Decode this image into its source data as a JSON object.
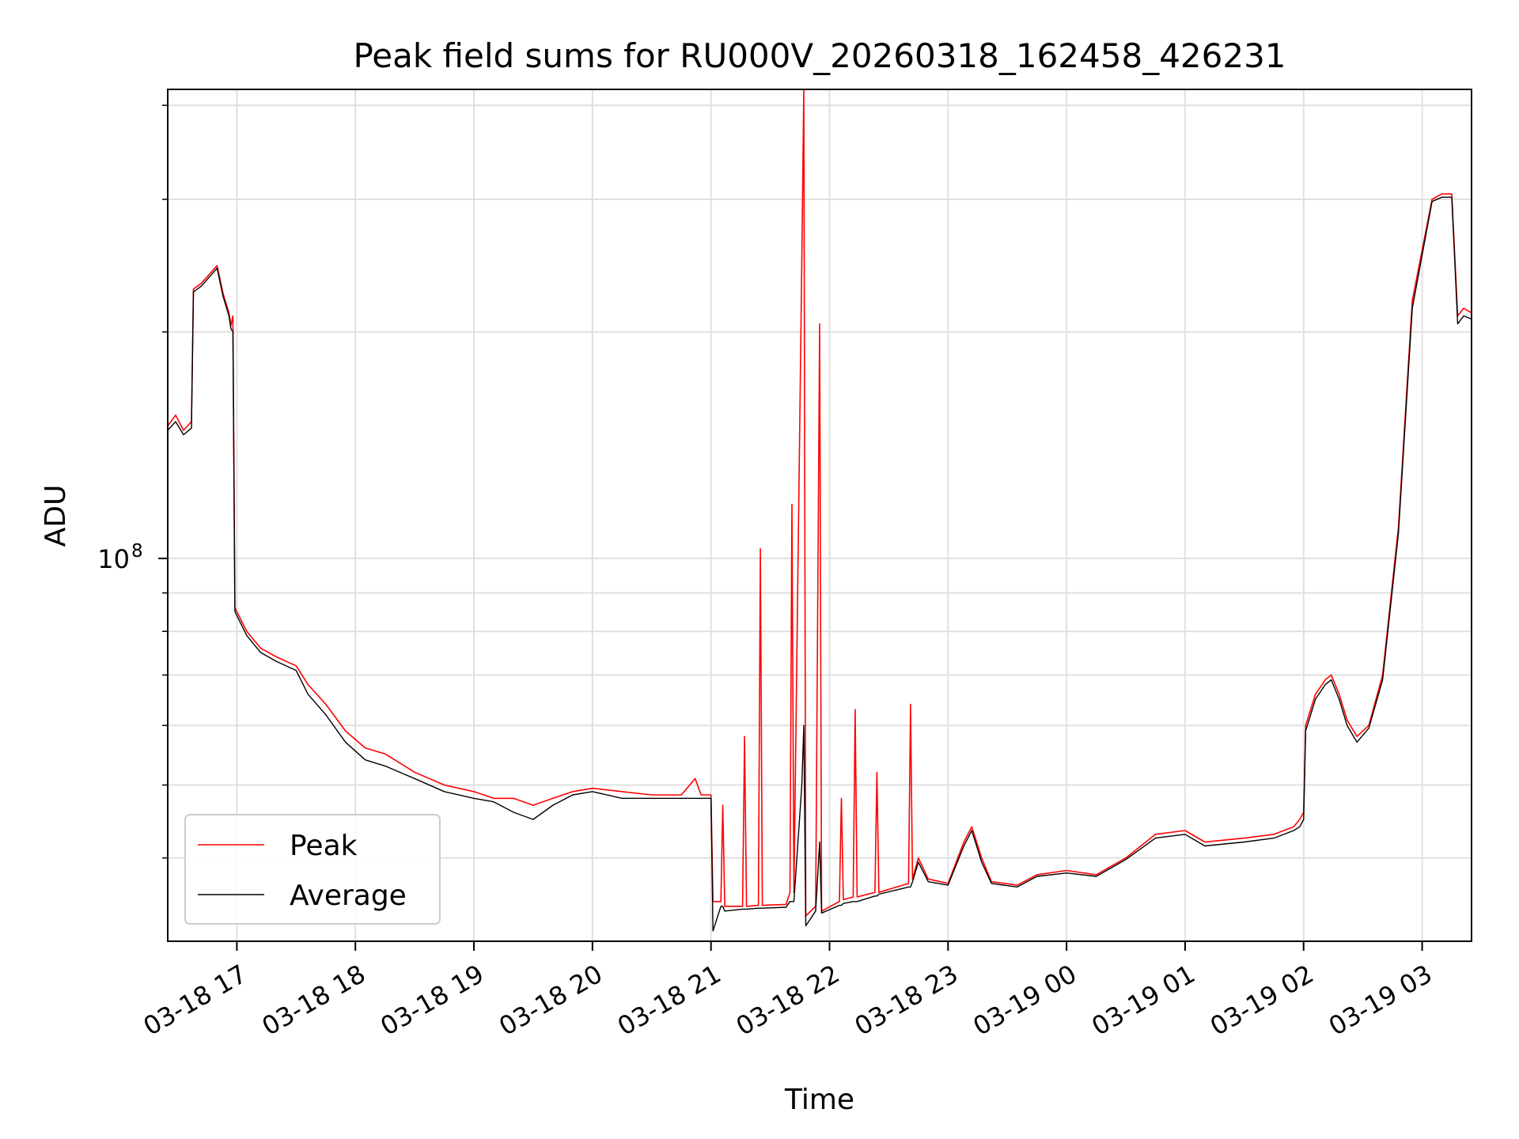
{
  "chart_data": {
    "type": "line",
    "title": "Peak field sums for RU000V_20260318_162458_426231",
    "xlabel": "Time",
    "ylabel": "ADU",
    "y_scale": "log",
    "ylim": [
      31000000,
      420000000
    ],
    "xlim": [
      "2026-03-18 16:25",
      "2026-03-19 03:25"
    ],
    "x_ticks": [
      {
        "time": "2026-03-18 17:00",
        "label": "03-18 17"
      },
      {
        "time": "2026-03-18 18:00",
        "label": "03-18 18"
      },
      {
        "time": "2026-03-18 19:00",
        "label": "03-18 19"
      },
      {
        "time": "2026-03-18 20:00",
        "label": "03-18 20"
      },
      {
        "time": "2026-03-18 21:00",
        "label": "03-18 21"
      },
      {
        "time": "2026-03-18 22:00",
        "label": "03-18 22"
      },
      {
        "time": "2026-03-18 23:00",
        "label": "03-18 23"
      },
      {
        "time": "2026-03-19 00:00",
        "label": "03-19 00"
      },
      {
        "time": "2026-03-19 01:00",
        "label": "03-19 01"
      },
      {
        "time": "2026-03-19 02:00",
        "label": "03-19 02"
      },
      {
        "time": "2026-03-19 03:00",
        "label": "03-19 03"
      }
    ],
    "y_major_ticks": [
      {
        "value": 100000000,
        "label": "10",
        "exponent": "8"
      }
    ],
    "y_minor_ticks": [
      40000000,
      50000000,
      60000000,
      70000000,
      80000000,
      90000000,
      200000000,
      300000000,
      400000000
    ],
    "grid": true,
    "legend": {
      "placement": "lower-left"
    },
    "series": [
      {
        "name": "Peak",
        "color": "#ff0000",
        "points": [
          [
            "2026-03-18 16:25",
            150000000
          ],
          [
            "2026-03-18 16:29",
            155000000
          ],
          [
            "2026-03-18 16:33",
            148000000
          ],
          [
            "2026-03-18 16:37",
            152000000
          ],
          [
            "2026-03-18 16:38",
            228000000
          ],
          [
            "2026-03-18 16:42",
            232000000
          ],
          [
            "2026-03-18 16:47",
            240000000
          ],
          [
            "2026-03-18 16:50",
            245000000
          ],
          [
            "2026-03-18 16:53",
            225000000
          ],
          [
            "2026-03-18 16:56",
            212000000
          ],
          [
            "2026-03-18 16:57",
            204000000
          ],
          [
            "2026-03-18 16:58",
            210000000
          ],
          [
            "2026-03-18 16:59",
            86000000
          ],
          [
            "2026-03-18 17:05",
            80000000
          ],
          [
            "2026-03-18 17:12",
            76000000
          ],
          [
            "2026-03-18 17:20",
            74000000
          ],
          [
            "2026-03-18 17:30",
            72000000
          ],
          [
            "2026-03-18 17:36",
            68000000
          ],
          [
            "2026-03-18 17:45",
            64000000
          ],
          [
            "2026-03-18 17:55",
            59000000
          ],
          [
            "2026-03-18 18:05",
            56000000
          ],
          [
            "2026-03-18 18:15",
            55000000
          ],
          [
            "2026-03-18 18:30",
            52000000
          ],
          [
            "2026-03-18 18:45",
            50000000
          ],
          [
            "2026-03-18 19:00",
            49000000
          ],
          [
            "2026-03-18 19:10",
            48000000
          ],
          [
            "2026-03-18 19:20",
            48000000
          ],
          [
            "2026-03-18 19:30",
            47000000
          ],
          [
            "2026-03-18 19:40",
            48000000
          ],
          [
            "2026-03-18 19:50",
            49000000
          ],
          [
            "2026-03-18 20:00",
            49500000
          ],
          [
            "2026-03-18 20:15",
            49000000
          ],
          [
            "2026-03-18 20:30",
            48500000
          ],
          [
            "2026-03-18 20:45",
            48500000
          ],
          [
            "2026-03-18 20:52",
            51000000
          ],
          [
            "2026-03-18 20:55",
            48500000
          ],
          [
            "2026-03-18 21:00",
            48500000
          ],
          [
            "2026-03-18 21:01",
            35000000
          ],
          [
            "2026-03-18 21:05",
            35000000
          ],
          [
            "2026-03-18 21:06",
            47000000
          ],
          [
            "2026-03-18 21:07",
            34500000
          ],
          [
            "2026-03-18 21:16",
            34500000
          ],
          [
            "2026-03-18 21:17",
            58000000
          ],
          [
            "2026-03-18 21:18",
            34500000
          ],
          [
            "2026-03-18 21:24",
            34600000
          ],
          [
            "2026-03-18 21:25",
            103000000
          ],
          [
            "2026-03-18 21:26",
            34600000
          ],
          [
            "2026-03-18 21:38",
            34700000
          ],
          [
            "2026-03-18 21:40",
            36000000
          ],
          [
            "2026-03-18 21:41",
            118000000
          ],
          [
            "2026-03-18 21:42",
            36000000
          ],
          [
            "2026-03-18 21:46",
            250000000
          ],
          [
            "2026-03-18 21:47",
            420000000
          ],
          [
            "2026-03-18 21:48",
            33500000
          ],
          [
            "2026-03-18 21:53",
            34500000
          ],
          [
            "2026-03-18 21:55",
            205000000
          ],
          [
            "2026-03-18 21:56",
            34000000
          ],
          [
            "2026-03-18 22:05",
            35000000
          ],
          [
            "2026-03-18 22:06",
            48000000
          ],
          [
            "2026-03-18 22:07",
            35200000
          ],
          [
            "2026-03-18 22:12",
            35500000
          ],
          [
            "2026-03-18 22:13",
            63000000
          ],
          [
            "2026-03-18 22:14",
            35500000
          ],
          [
            "2026-03-18 22:23",
            36000000
          ],
          [
            "2026-03-18 22:24",
            52000000
          ],
          [
            "2026-03-18 22:25",
            36000000
          ],
          [
            "2026-03-18 22:40",
            37000000
          ],
          [
            "2026-03-18 22:41",
            64000000
          ],
          [
            "2026-03-18 22:42",
            37500000
          ],
          [
            "2026-03-18 22:45",
            40000000
          ],
          [
            "2026-03-18 22:50",
            37500000
          ],
          [
            "2026-03-18 23:00",
            37000000
          ],
          [
            "2026-03-18 23:08",
            42000000
          ],
          [
            "2026-03-18 23:12",
            44000000
          ],
          [
            "2026-03-18 23:17",
            40000000
          ],
          [
            "2026-03-18 23:22",
            37200000
          ],
          [
            "2026-03-18 23:35",
            36800000
          ],
          [
            "2026-03-18 23:45",
            38000000
          ],
          [
            "2026-03-19 00:00",
            38500000
          ],
          [
            "2026-03-19 00:15",
            38000000
          ],
          [
            "2026-03-19 00:30",
            40000000
          ],
          [
            "2026-03-19 00:45",
            43000000
          ],
          [
            "2026-03-19 01:00",
            43500000
          ],
          [
            "2026-03-19 01:10",
            42000000
          ],
          [
            "2026-03-19 01:30",
            42500000
          ],
          [
            "2026-03-19 01:45",
            43000000
          ],
          [
            "2026-03-19 01:55",
            44000000
          ],
          [
            "2026-03-19 01:58",
            45000000
          ],
          [
            "2026-03-19 02:00",
            46000000
          ],
          [
            "2026-03-19 02:01",
            60000000
          ],
          [
            "2026-03-19 02:06",
            66000000
          ],
          [
            "2026-03-19 02:11",
            69000000
          ],
          [
            "2026-03-19 02:14",
            70000000
          ],
          [
            "2026-03-19 02:18",
            66000000
          ],
          [
            "2026-03-19 02:22",
            61000000
          ],
          [
            "2026-03-19 02:27",
            58000000
          ],
          [
            "2026-03-19 02:33",
            60000000
          ],
          [
            "2026-03-19 02:40",
            70000000
          ],
          [
            "2026-03-19 02:48",
            110000000
          ],
          [
            "2026-03-19 02:55",
            220000000
          ],
          [
            "2026-03-19 03:05",
            300000000
          ],
          [
            "2026-03-19 03:10",
            305000000
          ],
          [
            "2026-03-19 03:15",
            305000000
          ],
          [
            "2026-03-19 03:18",
            210000000
          ],
          [
            "2026-03-19 03:21",
            215000000
          ],
          [
            "2026-03-19 03:25",
            212000000
          ]
        ]
      },
      {
        "name": "Average",
        "color": "#000000",
        "points": [
          [
            "2026-03-18 16:25",
            148000000
          ],
          [
            "2026-03-18 16:29",
            152000000
          ],
          [
            "2026-03-18 16:33",
            146000000
          ],
          [
            "2026-03-18 16:37",
            149000000
          ],
          [
            "2026-03-18 16:38",
            226000000
          ],
          [
            "2026-03-18 16:42",
            230000000
          ],
          [
            "2026-03-18 16:47",
            238000000
          ],
          [
            "2026-03-18 16:50",
            243000000
          ],
          [
            "2026-03-18 16:53",
            223000000
          ],
          [
            "2026-03-18 16:56",
            210000000
          ],
          [
            "2026-03-18 16:57",
            202000000
          ],
          [
            "2026-03-18 16:58",
            200000000
          ],
          [
            "2026-03-18 16:59",
            85000000
          ],
          [
            "2026-03-18 17:05",
            79000000
          ],
          [
            "2026-03-18 17:12",
            75000000
          ],
          [
            "2026-03-18 17:20",
            73000000
          ],
          [
            "2026-03-18 17:30",
            71000000
          ],
          [
            "2026-03-18 17:36",
            66000000
          ],
          [
            "2026-03-18 17:45",
            62000000
          ],
          [
            "2026-03-18 17:55",
            57000000
          ],
          [
            "2026-03-18 18:05",
            54000000
          ],
          [
            "2026-03-18 18:15",
            53000000
          ],
          [
            "2026-03-18 18:30",
            51000000
          ],
          [
            "2026-03-18 18:45",
            49000000
          ],
          [
            "2026-03-18 19:00",
            48000000
          ],
          [
            "2026-03-18 19:10",
            47500000
          ],
          [
            "2026-03-18 19:20",
            46000000
          ],
          [
            "2026-03-18 19:30",
            45000000
          ],
          [
            "2026-03-18 19:40",
            47000000
          ],
          [
            "2026-03-18 19:50",
            48500000
          ],
          [
            "2026-03-18 20:00",
            49000000
          ],
          [
            "2026-03-18 20:15",
            48000000
          ],
          [
            "2026-03-18 20:30",
            48000000
          ],
          [
            "2026-03-18 20:45",
            48000000
          ],
          [
            "2026-03-18 20:52",
            48000000
          ],
          [
            "2026-03-18 20:55",
            48000000
          ],
          [
            "2026-03-18 21:00",
            48000000
          ],
          [
            "2026-03-18 21:01",
            32000000
          ],
          [
            "2026-03-18 21:05",
            34500000
          ],
          [
            "2026-03-18 21:06",
            34500000
          ],
          [
            "2026-03-18 21:07",
            34000000
          ],
          [
            "2026-03-18 21:16",
            34200000
          ],
          [
            "2026-03-18 21:17",
            34200000
          ],
          [
            "2026-03-18 21:18",
            34200000
          ],
          [
            "2026-03-18 21:24",
            34300000
          ],
          [
            "2026-03-18 21:25",
            34300000
          ],
          [
            "2026-03-18 21:26",
            34300000
          ],
          [
            "2026-03-18 21:38",
            34400000
          ],
          [
            "2026-03-18 21:40",
            35000000
          ],
          [
            "2026-03-18 21:41",
            35000000
          ],
          [
            "2026-03-18 21:42",
            35000000
          ],
          [
            "2026-03-18 21:46",
            50000000
          ],
          [
            "2026-03-18 21:47",
            60000000
          ],
          [
            "2026-03-18 21:48",
            32500000
          ],
          [
            "2026-03-18 21:53",
            34000000
          ],
          [
            "2026-03-18 21:55",
            42000000
          ],
          [
            "2026-03-18 21:56",
            33800000
          ],
          [
            "2026-03-18 22:05",
            34600000
          ],
          [
            "2026-03-18 22:06",
            34600000
          ],
          [
            "2026-03-18 22:07",
            34800000
          ],
          [
            "2026-03-18 22:12",
            35000000
          ],
          [
            "2026-03-18 22:13",
            35000000
          ],
          [
            "2026-03-18 22:14",
            35000000
          ],
          [
            "2026-03-18 22:23",
            35600000
          ],
          [
            "2026-03-18 22:24",
            35600000
          ],
          [
            "2026-03-18 22:25",
            35800000
          ],
          [
            "2026-03-18 22:40",
            36600000
          ],
          [
            "2026-03-18 22:41",
            36600000
          ],
          [
            "2026-03-18 22:42",
            37200000
          ],
          [
            "2026-03-18 22:45",
            39500000
          ],
          [
            "2026-03-18 22:50",
            37200000
          ],
          [
            "2026-03-18 23:00",
            36800000
          ],
          [
            "2026-03-18 23:08",
            41500000
          ],
          [
            "2026-03-18 23:12",
            43500000
          ],
          [
            "2026-03-18 23:17",
            39500000
          ],
          [
            "2026-03-18 23:22",
            37000000
          ],
          [
            "2026-03-18 23:35",
            36600000
          ],
          [
            "2026-03-18 23:45",
            37800000
          ],
          [
            "2026-03-19 00:00",
            38200000
          ],
          [
            "2026-03-19 00:15",
            37800000
          ],
          [
            "2026-03-19 00:30",
            39800000
          ],
          [
            "2026-03-19 00:45",
            42500000
          ],
          [
            "2026-03-19 01:00",
            43000000
          ],
          [
            "2026-03-19 01:10",
            41500000
          ],
          [
            "2026-03-19 01:30",
            42000000
          ],
          [
            "2026-03-19 01:45",
            42500000
          ],
          [
            "2026-03-19 01:55",
            43500000
          ],
          [
            "2026-03-19 01:58",
            44000000
          ],
          [
            "2026-03-19 02:00",
            45000000
          ],
          [
            "2026-03-19 02:01",
            59000000
          ],
          [
            "2026-03-19 02:06",
            65000000
          ],
          [
            "2026-03-19 02:11",
            68000000
          ],
          [
            "2026-03-19 02:14",
            69000000
          ],
          [
            "2026-03-19 02:18",
            65000000
          ],
          [
            "2026-03-19 02:22",
            60000000
          ],
          [
            "2026-03-19 02:27",
            57000000
          ],
          [
            "2026-03-19 02:33",
            59500000
          ],
          [
            "2026-03-19 02:40",
            69000000
          ],
          [
            "2026-03-19 02:48",
            108000000
          ],
          [
            "2026-03-19 02:55",
            215000000
          ],
          [
            "2026-03-19 03:05",
            298000000
          ],
          [
            "2026-03-19 03:10",
            302000000
          ],
          [
            "2026-03-19 03:15",
            302000000
          ],
          [
            "2026-03-19 03:18",
            205000000
          ],
          [
            "2026-03-19 03:21",
            210000000
          ],
          [
            "2026-03-19 03:25",
            208000000
          ]
        ]
      }
    ]
  }
}
